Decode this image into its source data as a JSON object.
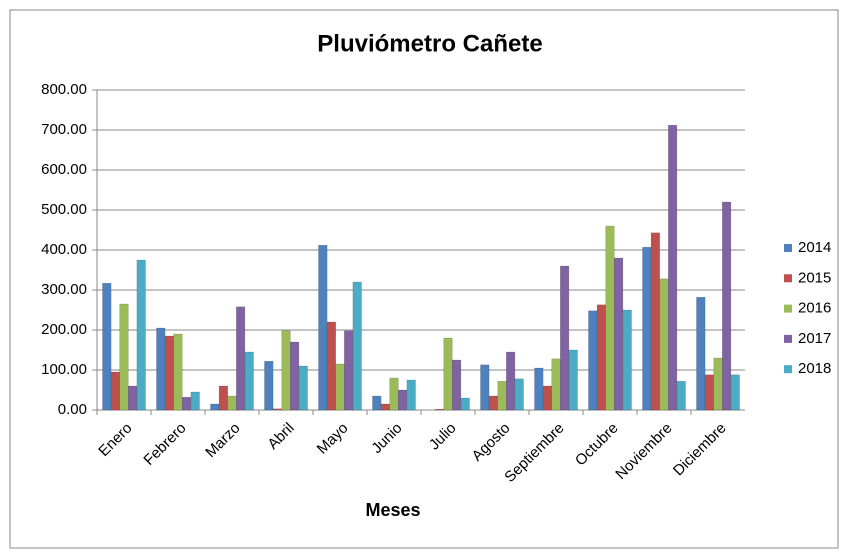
{
  "chart_data": {
    "type": "bar",
    "title": "Pluviómetro  Cañete",
    "x_label": "Meses",
    "categories": [
      "Enero",
      "Febrero",
      "Marzo",
      "Abril",
      "Mayo",
      "Junio",
      "Julio",
      "Agosto",
      "Septiembre",
      "Octubre",
      "Noviembre",
      "Diciembre"
    ],
    "series": [
      {
        "name": "2014",
        "color": "#4f81bd",
        "values": [
          317,
          205,
          15,
          122,
          412,
          35,
          0,
          113,
          105,
          248,
          407,
          282
        ]
      },
      {
        "name": "2015",
        "color": "#c0504d",
        "values": [
          95,
          185,
          60,
          3,
          220,
          15,
          2,
          35,
          60,
          263,
          443,
          88
        ]
      },
      {
        "name": "2016",
        "color": "#9bbb59",
        "values": [
          265,
          190,
          35,
          198,
          115,
          80,
          180,
          72,
          128,
          460,
          328,
          130
        ]
      },
      {
        "name": "2017",
        "color": "#8064a2",
        "values": [
          60,
          32,
          258,
          170,
          198,
          50,
          125,
          145,
          360,
          380,
          712,
          520
        ]
      },
      {
        "name": "2018",
        "color": "#4bacc6",
        "values": [
          375,
          45,
          145,
          110,
          320,
          75,
          30,
          78,
          150,
          250,
          72,
          88
        ]
      }
    ],
    "ylim": [
      0,
      800
    ],
    "yticks": [
      {
        "value": 0,
        "label": "0.00"
      },
      {
        "value": 100,
        "label": "100.00"
      },
      {
        "value": 200,
        "label": "200.00"
      },
      {
        "value": 300,
        "label": "300.00"
      },
      {
        "value": 400,
        "label": "400.00"
      },
      {
        "value": 500,
        "label": "500.00"
      },
      {
        "value": 600,
        "label": "600.00"
      },
      {
        "value": 700,
        "label": "700.00"
      },
      {
        "value": 800,
        "label": "800.00"
      }
    ],
    "grid": true,
    "legend": "right"
  }
}
